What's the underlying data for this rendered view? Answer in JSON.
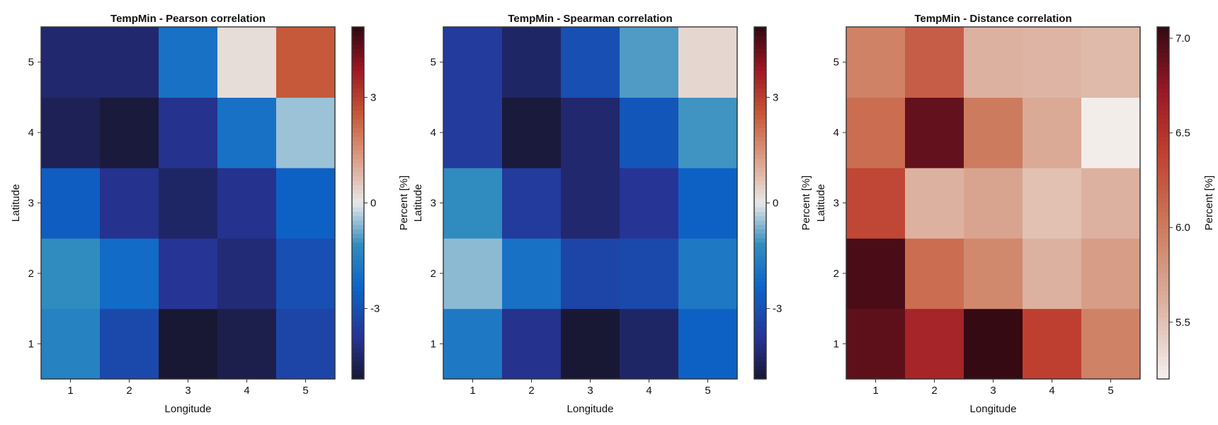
{
  "chart_data": [
    {
      "type": "heatmap",
      "title": "TempMin - Pearson correlation",
      "xlabel": "Longitude",
      "ylabel": "Latitude",
      "colorbar_label": "Percent [%]",
      "x": [
        1,
        2,
        3,
        4,
        5
      ],
      "y": [
        1,
        2,
        3,
        4,
        5
      ],
      "colormap": "diverging blue-white-red",
      "clim": [
        -5.0,
        5.0
      ],
      "colorbar_ticks": [
        3,
        0,
        -3
      ],
      "colorbar_tick_labels": [
        "3",
        "0",
        "-3"
      ],
      "z": [
        [
          -1.5,
          -3.2,
          -5.0,
          -4.7,
          -3.3
        ],
        [
          -1.2,
          -2.2,
          -3.8,
          -4.2,
          -3.0
        ],
        [
          -2.6,
          -3.9,
          -4.4,
          -3.9,
          -2.5
        ],
        [
          -4.6,
          -4.9,
          -3.9,
          -2.0,
          -0.5
        ],
        [
          -4.3,
          -4.3,
          -2.0,
          0.2,
          2.5
        ]
      ]
    },
    {
      "type": "heatmap",
      "title": "TempMin - Spearman correlation",
      "xlabel": "Longitude",
      "ylabel": "Latitude",
      "colorbar_label": "Percent [%]",
      "x": [
        1,
        2,
        3,
        4,
        5
      ],
      "y": [
        1,
        2,
        3,
        4,
        5
      ],
      "colormap": "diverging blue-white-red",
      "clim": [
        -5.0,
        5.0
      ],
      "colorbar_ticks": [
        3,
        0,
        -3
      ],
      "colorbar_tick_labels": [
        "3",
        "0",
        "-3"
      ],
      "z": [
        [
          -1.8,
          -3.9,
          -5.0,
          -4.4,
          -2.5
        ],
        [
          -0.6,
          -2.0,
          -3.3,
          -3.2,
          -1.8
        ],
        [
          -1.2,
          -3.6,
          -4.3,
          -3.8,
          -2.5
        ],
        [
          -3.6,
          -4.9,
          -4.3,
          -2.8,
          -1.1
        ],
        [
          -3.6,
          -4.4,
          -3.0,
          -1.0,
          0.3
        ]
      ]
    },
    {
      "type": "heatmap",
      "title": "TempMin - Distance correlation",
      "xlabel": "Longitude",
      "ylabel": "Latitude",
      "colorbar_label": "Percent [%]",
      "x": [
        1,
        2,
        3,
        4,
        5
      ],
      "y": [
        1,
        2,
        3,
        4,
        5
      ],
      "colormap": "sequential white-red",
      "clim": [
        5.2,
        7.06
      ],
      "colorbar_ticks": [
        7.0,
        6.5,
        6.0,
        5.5
      ],
      "colorbar_tick_labels": [
        "7.0",
        "6.5",
        "6.0",
        "5.5"
      ],
      "z": [
        [
          6.92,
          6.62,
          7.05,
          6.4,
          5.95
        ],
        [
          6.98,
          6.1,
          5.9,
          5.6,
          5.75
        ],
        [
          6.35,
          5.6,
          5.7,
          5.5,
          5.6
        ],
        [
          6.1,
          6.9,
          6.0,
          5.65,
          5.22
        ],
        [
          5.95,
          6.2,
          5.6,
          5.58,
          5.55
        ]
      ]
    }
  ]
}
